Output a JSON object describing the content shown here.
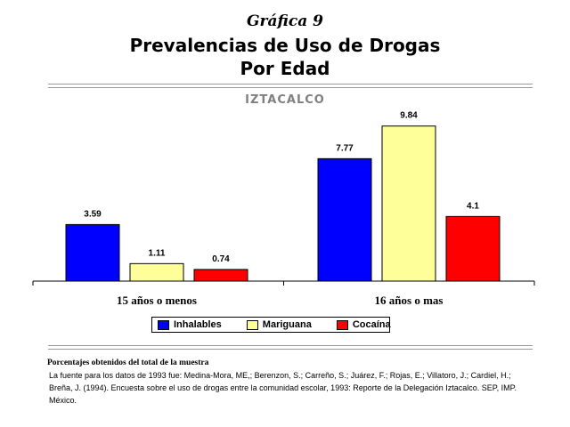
{
  "header": {
    "kicker": "Gráfica 9",
    "title_line1": "Prevalencias de Uso de Drogas",
    "title_line2": "Por Edad"
  },
  "chart_data": {
    "type": "bar",
    "title": "IZTACALCO",
    "categories": [
      "15 años o menos",
      "16 años o mas"
    ],
    "series": [
      {
        "name": "Inhalables",
        "values": [
          3.59,
          7.77
        ],
        "color": "#0000ff"
      },
      {
        "name": "Mariguana",
        "values": [
          1.11,
          9.84
        ],
        "color": "#ffff99"
      },
      {
        "name": "Cocaína",
        "values": [
          0.74,
          4.1
        ],
        "color": "#ff0000"
      }
    ],
    "ylim": [
      0,
      10.5
    ],
    "grid": false,
    "legend": "bottom"
  },
  "footnote": {
    "heading": "Porcentajes obtenidos del total de la muestra",
    "text": "La fuente para los datos de 1993 fue: Medina-Mora, ME,; Berenzon, S.; Carreño, S.; Juárez, F.; Rojas, E.; Villatoro, J.; Cardiel, H.; Breña, J. (1994). Encuesta sobre el uso de drogas entre la comunidad escolar, 1993: Reporte de la Delegación Iztacalco. SEP, IMP. México."
  }
}
